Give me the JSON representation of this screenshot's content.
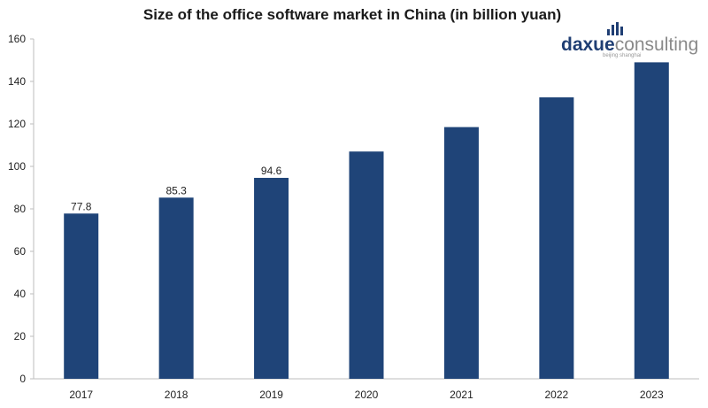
{
  "chart_data": {
    "type": "bar",
    "title": "Size of the office software market in China (in billion yuan)",
    "categories": [
      "2017",
      "2018",
      "2019",
      "2020",
      "2021",
      "2022",
      "2023"
    ],
    "values": [
      77.8,
      85.3,
      94.6,
      107,
      118.5,
      132.5,
      149
    ],
    "data_labels": [
      "77.8",
      "85.3",
      "94.6",
      "",
      "",
      "",
      ""
    ],
    "ylim": [
      0,
      160
    ],
    "yticks": [
      0,
      20,
      40,
      60,
      80,
      100,
      120,
      140,
      160
    ],
    "bar_color": "#1f4478",
    "grid": false
  },
  "logo": {
    "word_part1": "daxue",
    "word_part2": "consulting",
    "tagline": "beijing shanghai"
  }
}
